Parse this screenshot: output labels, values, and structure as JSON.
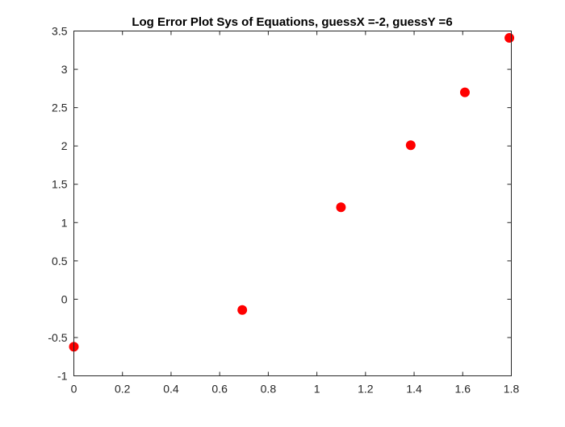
{
  "chart_data": {
    "type": "scatter",
    "title": "Log Error Plot Sys of Equations, guessX =-2, guessY =6",
    "xlabel": "",
    "ylabel": "",
    "xlim": [
      0,
      1.8
    ],
    "ylim": [
      -1,
      3.5
    ],
    "xticks": [
      0,
      0.2,
      0.4,
      0.6,
      0.8,
      1,
      1.2,
      1.4,
      1.6,
      1.8
    ],
    "xtick_labels": [
      "0",
      "0.2",
      "0.4",
      "0.6",
      "0.8",
      "1",
      "1.2",
      "1.4",
      "1.6",
      "1.8"
    ],
    "yticks": [
      -1,
      -0.5,
      0,
      0.5,
      1,
      1.5,
      2,
      2.5,
      3,
      3.5
    ],
    "ytick_labels": [
      "-1",
      "-0.5",
      "0",
      "0.5",
      "1",
      "1.5",
      "2",
      "2.5",
      "3",
      "3.5"
    ],
    "grid": false,
    "legend": false,
    "marker_color": "#ff0000",
    "series": [
      {
        "x": [
          0,
          0.693,
          1.099,
          1.386,
          1.609,
          1.792
        ],
        "y": [
          -0.62,
          -0.14,
          1.2,
          2.01,
          2.7,
          3.41
        ]
      }
    ]
  }
}
